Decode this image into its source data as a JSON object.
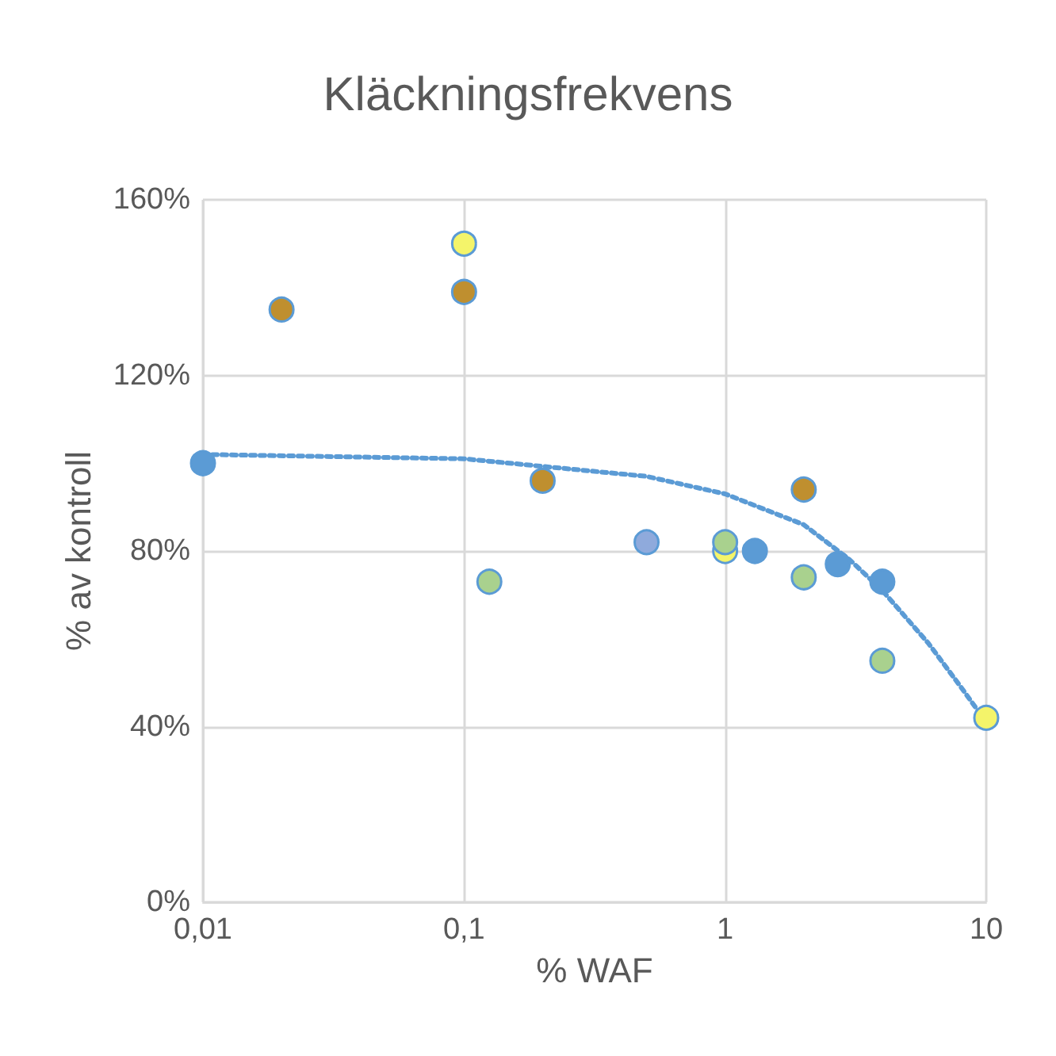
{
  "chart_data": {
    "type": "scatter",
    "title": "Kläckningsfrekvens",
    "xlabel": "% WAF",
    "ylabel": "% av kontroll",
    "log": "x",
    "xlim": [
      0.01,
      10
    ],
    "xticks": [
      {
        "value": 0.01,
        "label": "0,01"
      },
      {
        "value": 0.1,
        "label": "0,1"
      },
      {
        "value": 1,
        "label": "1"
      },
      {
        "value": 10,
        "label": "10"
      }
    ],
    "ylim": [
      0,
      160
    ],
    "yticks": [
      {
        "value": 0,
        "label": "0%"
      },
      {
        "value": 40,
        "label": "40%"
      },
      {
        "value": 80,
        "label": "80%"
      },
      {
        "value": 120,
        "label": "120%"
      },
      {
        "value": 160,
        "label": "160%"
      }
    ],
    "grid": true,
    "marker": "circle",
    "series": [
      {
        "type": "line",
        "color": "#5b9bd5",
        "line_style": "dotted",
        "marker": "none",
        "x": [
          0.01,
          0.1,
          0.5,
          1,
          2,
          3,
          4,
          6,
          8,
          10
        ],
        "values": [
          102,
          101,
          97,
          93,
          86,
          78,
          71,
          59,
          49,
          41
        ]
      },
      {
        "color": "#5b9bd5",
        "x": [
          0.01,
          1.3,
          2.7,
          4
        ],
        "values": [
          100,
          80,
          77,
          73
        ]
      },
      {
        "color": "#bf8f2f",
        "x": [
          0.02,
          0.1,
          0.2,
          2
        ],
        "values": [
          135,
          139,
          96,
          94
        ]
      },
      {
        "color": "#f4f46a",
        "x": [
          0.1,
          1,
          10
        ],
        "values": [
          150,
          80,
          42
        ]
      },
      {
        "color": "#a9d18e",
        "x": [
          0.125,
          1,
          2,
          4
        ],
        "values": [
          73,
          82,
          74,
          55
        ]
      },
      {
        "color": "#8faadc",
        "x": [
          0.5
        ],
        "values": [
          82
        ]
      }
    ]
  }
}
